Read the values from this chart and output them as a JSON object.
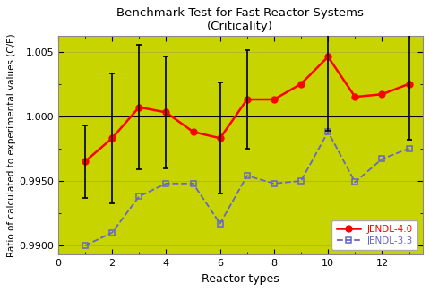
{
  "title_line1": "Benchmark Test for Fast Reactor Systems",
  "title_line2": "(Criticality)",
  "xlabel": "Reactor types",
  "ylabel": "Ratio of calculated to experimental values (C/E)",
  "background_color": "#c8d400",
  "fig_facecolor": "#ffffff",
  "xlim": [
    0.5,
    13.5
  ],
  "ylim": [
    0.9893,
    1.0062
  ],
  "yticks": [
    0.99,
    0.995,
    1.0,
    1.005
  ],
  "ytick_labels": [
    "0.9900",
    "0.9950",
    "1.000",
    "1.005"
  ],
  "xticks": [
    0,
    2,
    4,
    6,
    8,
    10,
    12
  ],
  "jendl40": {
    "x": [
      1,
      2,
      3,
      4,
      5,
      6,
      7,
      8,
      9,
      10,
      11,
      12,
      13
    ],
    "y": [
      0.9965,
      0.9983,
      1.0007,
      1.0003,
      0.9988,
      0.9983,
      1.0013,
      1.0013,
      1.0025,
      1.0046,
      1.0015,
      1.0017,
      1.0025
    ],
    "color": "#ff0000",
    "marker": "o",
    "linestyle": "-",
    "linewidth": 1.8,
    "markersize": 5,
    "label": "JENDL-4.0"
  },
  "jendl33": {
    "x": [
      1,
      2,
      3,
      4,
      5,
      6,
      7,
      8,
      9,
      10,
      11,
      12,
      13
    ],
    "y": [
      0.99,
      0.991,
      0.9938,
      0.9948,
      0.9948,
      0.9917,
      0.9954,
      0.9948,
      0.995,
      0.9988,
      0.9949,
      0.9967,
      0.9975
    ],
    "color": "#6666cc",
    "marker": "s",
    "linestyle": "--",
    "linewidth": 1.3,
    "markersize": 4,
    "label": "JENDL-3.3"
  },
  "errorbars": {
    "x": [
      1,
      2,
      3,
      4,
      6,
      7,
      10,
      13
    ],
    "y": [
      0.9965,
      0.9983,
      1.0007,
      1.0003,
      0.9983,
      1.0013,
      1.0046,
      1.0025
    ],
    "yerr_low": [
      0.0028,
      0.005,
      0.0048,
      0.0043,
      0.0043,
      0.0038,
      0.0057,
      0.0043
    ],
    "yerr_high": [
      0.0028,
      0.005,
      0.0048,
      0.0043,
      0.0043,
      0.0038,
      0.0057,
      0.0043
    ],
    "color": "#000000",
    "linewidth": 1.2,
    "capsize": 2.5
  },
  "hline_y": 1.0,
  "hline_color": "#000000",
  "hline_linewidth": 0.8
}
